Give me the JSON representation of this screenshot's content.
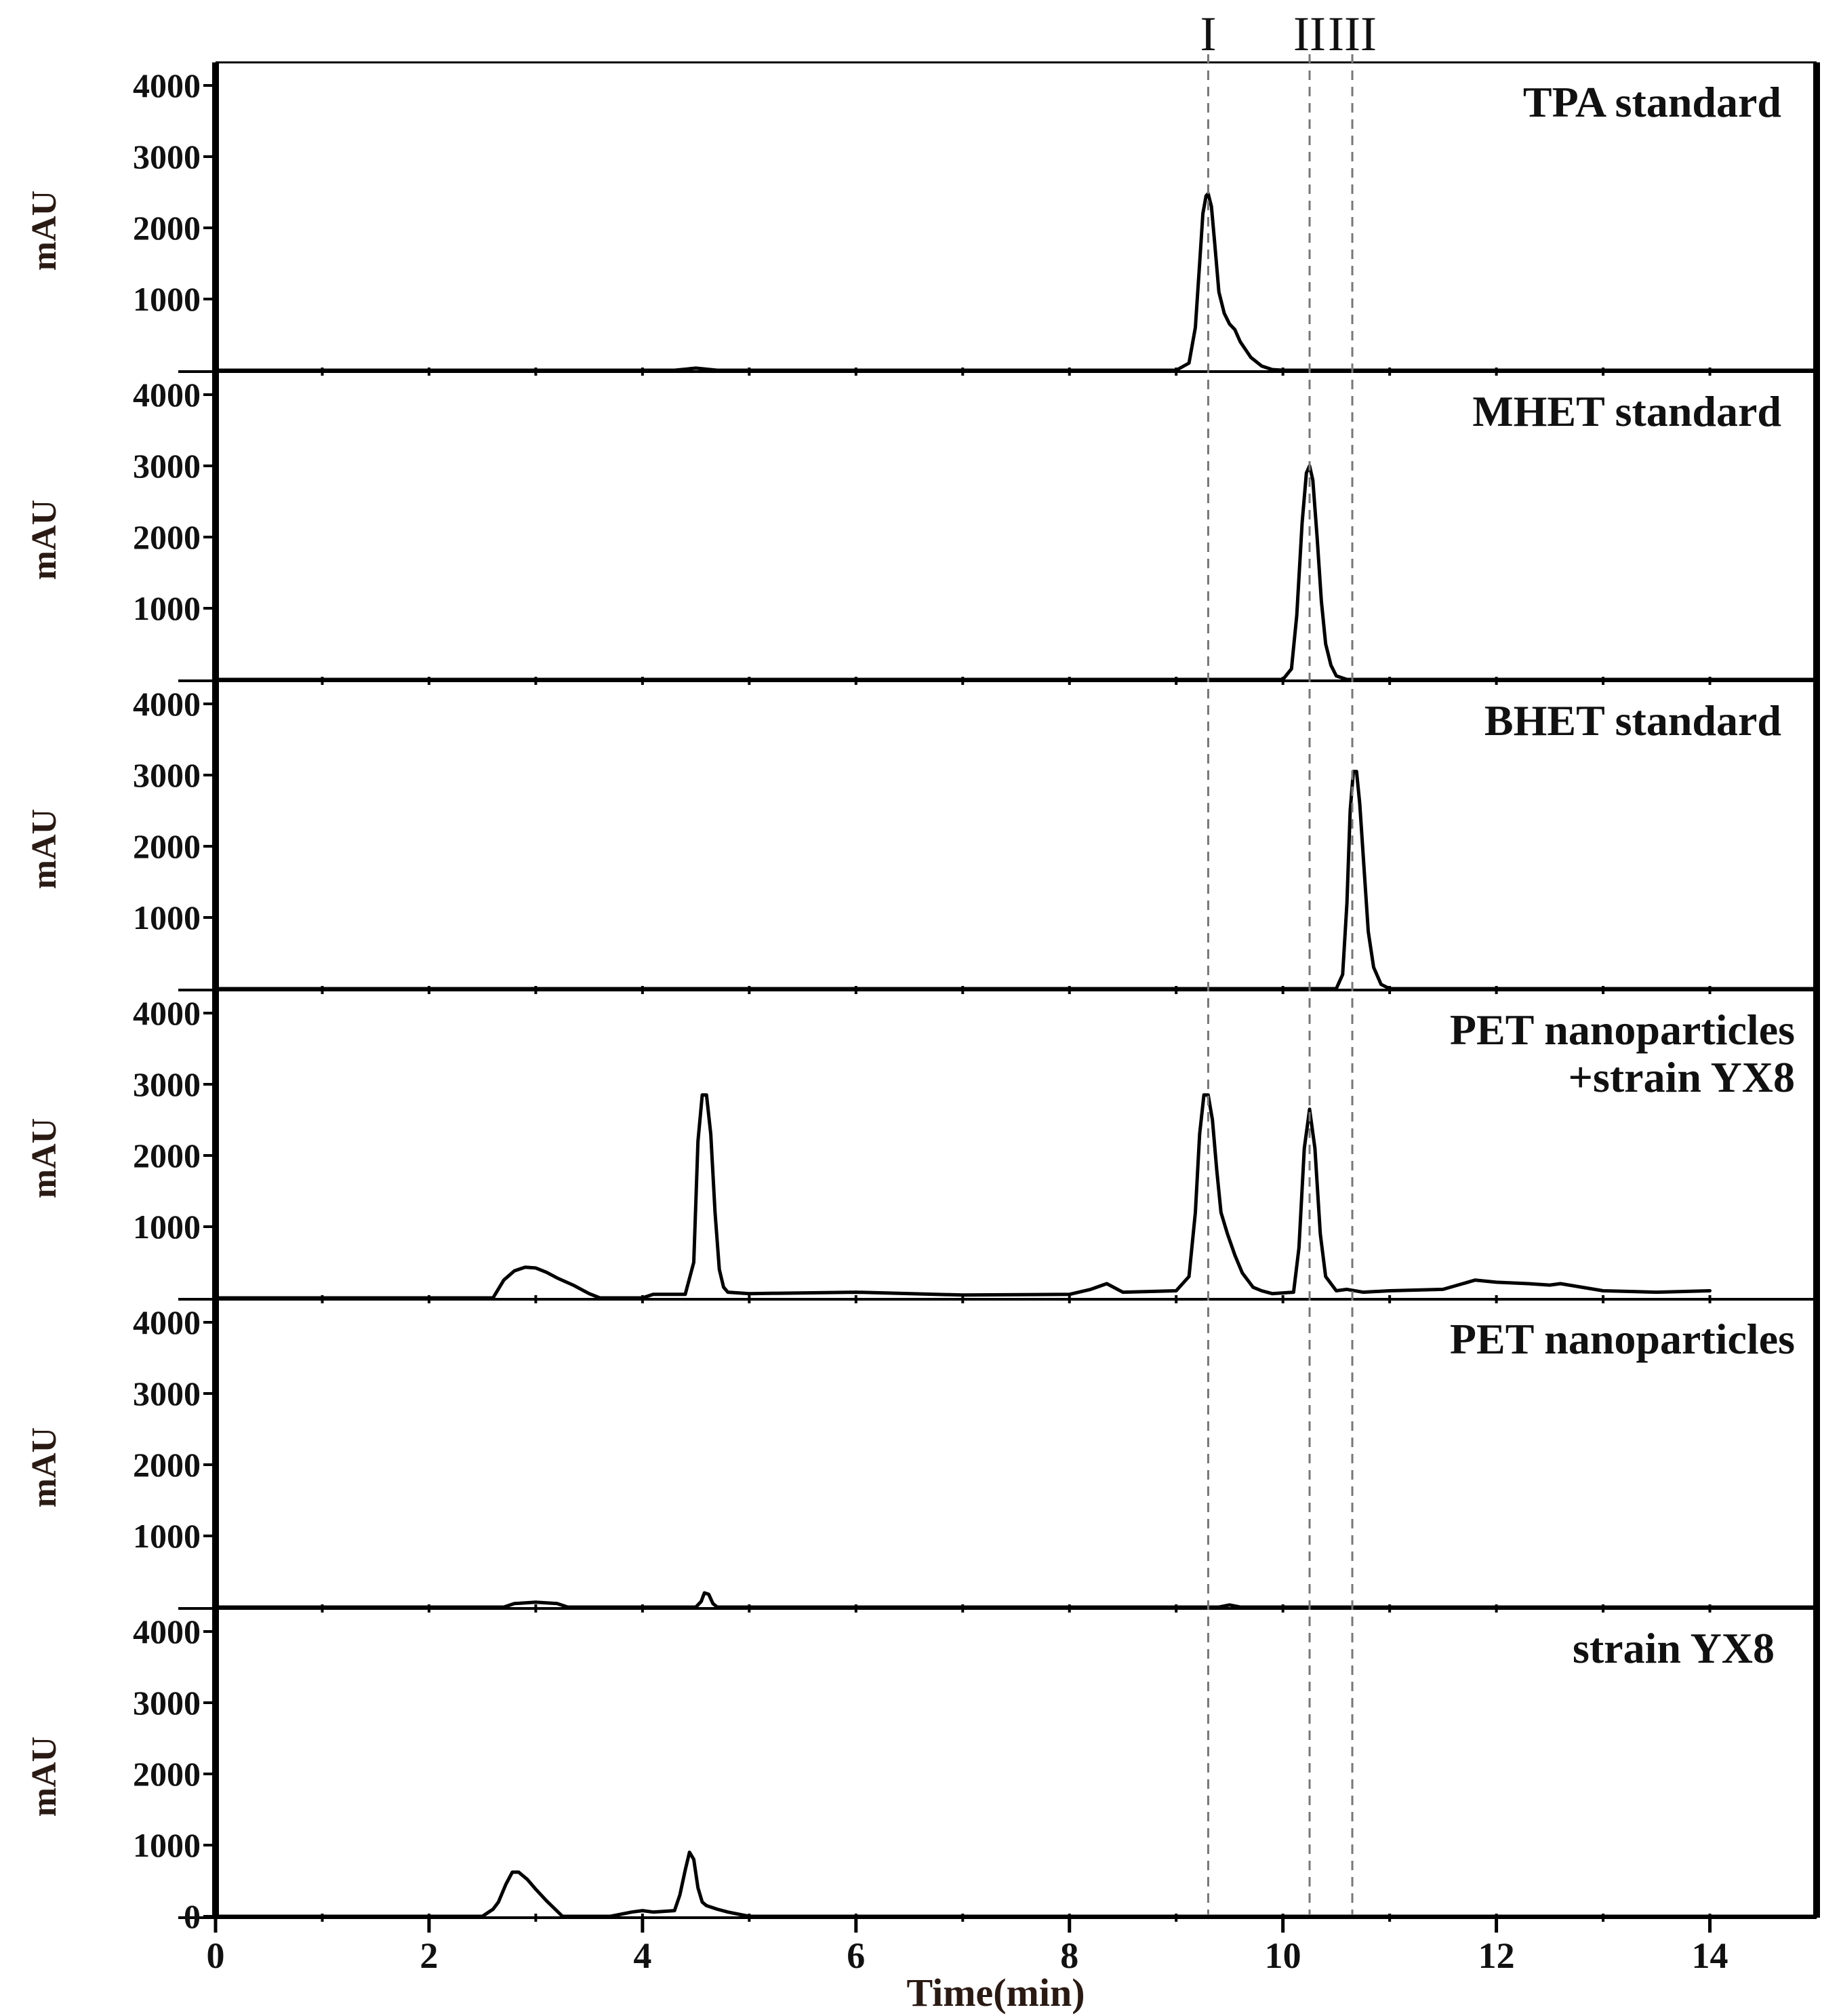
{
  "chart_data": {
    "type": "line",
    "xlabel": "Time(min)",
    "xlim": [
      0,
      15
    ],
    "xticks": [
      0,
      2,
      4,
      6,
      8,
      10,
      12,
      14
    ],
    "grid": false,
    "reference_lines": [
      {
        "label": "I",
        "x": 9.3
      },
      {
        "label": "II",
        "x": 10.25
      },
      {
        "label": "III",
        "x": 10.65
      }
    ],
    "panels": [
      {
        "label": "TPA standard",
        "ylabel": "mAU",
        "ylim": [
          0,
          4000
        ],
        "yticks": [
          1000,
          2000,
          3000,
          4000
        ],
        "x": [
          0,
          2.0,
          4.3,
          4.5,
          4.7,
          9.0,
          9.12,
          9.18,
          9.22,
          9.25,
          9.28,
          9.3,
          9.33,
          9.36,
          9.4,
          9.45,
          9.5,
          9.55,
          9.6,
          9.7,
          9.8,
          9.9,
          10.0,
          10.2,
          15
        ],
        "y": [
          0,
          0,
          0,
          30,
          0,
          0,
          100,
          600,
          1500,
          2200,
          2450,
          2480,
          2300,
          1800,
          1100,
          800,
          650,
          570,
          400,
          180,
          60,
          10,
          0,
          0,
          0
        ]
      },
      {
        "label": "MHET standard",
        "ylabel": "mAU",
        "ylim": [
          0,
          4000
        ],
        "yticks": [
          1000,
          2000,
          3000,
          4000
        ],
        "x": [
          0,
          10.0,
          10.08,
          10.13,
          10.18,
          10.22,
          10.25,
          10.28,
          10.32,
          10.36,
          10.4,
          10.45,
          10.5,
          10.6,
          15
        ],
        "y": [
          0,
          0,
          150,
          900,
          2200,
          2900,
          3000,
          2800,
          2000,
          1100,
          500,
          200,
          50,
          0,
          0
        ]
      },
      {
        "label": "BHET standard",
        "ylabel": "mAU",
        "ylim": [
          0,
          4000
        ],
        "yticks": [
          1000,
          2000,
          3000,
          4000
        ],
        "x": [
          0,
          10.5,
          10.56,
          10.6,
          10.63,
          10.66,
          10.69,
          10.72,
          10.76,
          10.8,
          10.85,
          10.92,
          11.0,
          11.2,
          15
        ],
        "y": [
          0,
          0,
          200,
          1200,
          2500,
          3050,
          3050,
          2600,
          1700,
          800,
          300,
          60,
          0,
          0,
          0
        ]
      },
      {
        "label": "PET nanoparticles\n+strain YX8",
        "ylabel": "mAU",
        "ylim": [
          0,
          4000
        ],
        "yticks": [
          1000,
          2000,
          3000,
          4000
        ],
        "x": [
          0,
          2.6,
          2.7,
          2.8,
          2.9,
          3.0,
          3.1,
          3.2,
          3.35,
          3.5,
          3.6,
          4.0,
          4.1,
          4.4,
          4.48,
          4.52,
          4.56,
          4.6,
          4.64,
          4.68,
          4.72,
          4.76,
          4.8,
          5.0,
          6.0,
          7.0,
          8.0,
          8.2,
          8.35,
          8.5,
          9.0,
          9.12,
          9.18,
          9.22,
          9.26,
          9.3,
          9.34,
          9.38,
          9.42,
          9.48,
          9.55,
          9.62,
          9.72,
          9.8,
          9.9,
          10.1,
          10.15,
          10.2,
          10.25,
          10.3,
          10.35,
          10.4,
          10.5,
          10.6,
          10.75,
          11.0,
          11.5,
          11.8,
          12.0,
          12.3,
          12.5,
          12.6,
          13.0,
          13.5,
          14.0
        ],
        "y": [
          0,
          0,
          250,
          380,
          430,
          420,
          360,
          280,
          180,
          60,
          0,
          0,
          50,
          50,
          500,
          2200,
          2850,
          2850,
          2300,
          1200,
          400,
          150,
          80,
          60,
          80,
          40,
          50,
          120,
          200,
          80,
          100,
          300,
          1200,
          2300,
          2850,
          2850,
          2500,
          1800,
          1200,
          900,
          600,
          350,
          150,
          100,
          60,
          80,
          700,
          2100,
          2650,
          2100,
          900,
          300,
          100,
          120,
          80,
          100,
          120,
          250,
          220,
          200,
          180,
          200,
          100,
          80,
          100
        ]
      },
      {
        "label": "PET nanoparticles",
        "ylabel": "mAU",
        "ylim": [
          0,
          4000
        ],
        "yticks": [
          1000,
          2000,
          3000,
          4000
        ],
        "x": [
          0,
          2.7,
          2.8,
          3.0,
          3.2,
          3.3,
          4.5,
          4.55,
          4.58,
          4.62,
          4.66,
          4.7,
          9.4,
          9.5,
          9.6,
          15
        ],
        "y": [
          0,
          0,
          50,
          70,
          50,
          0,
          0,
          80,
          200,
          180,
          50,
          0,
          0,
          30,
          0,
          0
        ]
      },
      {
        "label": "strain YX8",
        "ylabel": "mAU",
        "ylim": [
          0,
          4000
        ],
        "yticks": [
          0,
          1000,
          2000,
          3000,
          4000
        ],
        "x": [
          0,
          2.5,
          2.6,
          2.65,
          2.72,
          2.78,
          2.84,
          2.92,
          3.0,
          3.1,
          3.25,
          3.7,
          3.9,
          4.0,
          4.1,
          4.3,
          4.35,
          4.4,
          4.44,
          4.48,
          4.52,
          4.56,
          4.6,
          4.7,
          4.8,
          5.0,
          15
        ],
        "y": [
          0,
          0,
          100,
          200,
          450,
          620,
          620,
          520,
          380,
          220,
          0,
          0,
          60,
          80,
          60,
          80,
          300,
          650,
          900,
          800,
          400,
          200,
          150,
          100,
          60,
          0,
          0
        ]
      }
    ]
  }
}
